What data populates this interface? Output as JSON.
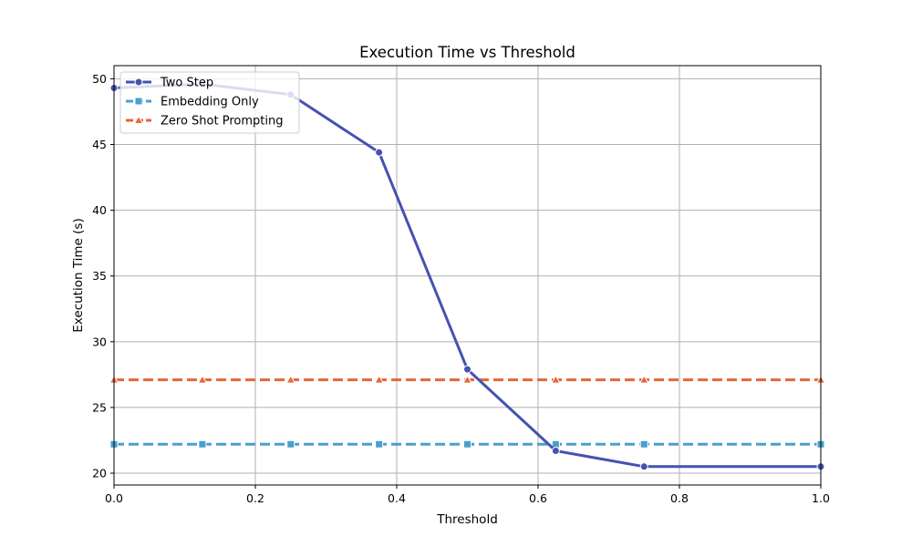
{
  "chart_data": {
    "type": "line",
    "title": "Execution Time vs Threshold",
    "xlabel": "Threshold",
    "ylabel": "Execution Time (s)",
    "xlim": [
      0.0,
      1.0
    ],
    "ylim": [
      19.1,
      51.0
    ],
    "x_ticks": [
      0.0,
      0.2,
      0.4,
      0.6,
      0.8,
      1.0
    ],
    "x_tick_labels": [
      "0.0",
      "0.2",
      "0.4",
      "0.6",
      "0.8",
      "1.0"
    ],
    "y_ticks": [
      20,
      25,
      30,
      35,
      40,
      45,
      50
    ],
    "y_tick_labels": [
      "20",
      "25",
      "30",
      "35",
      "40",
      "45",
      "50"
    ],
    "grid": true,
    "legend_position": "top-left",
    "x": [
      0.0,
      0.125,
      0.25,
      0.375,
      0.5,
      0.625,
      0.75,
      1.0
    ],
    "series": [
      {
        "name": "Two Step",
        "values": [
          49.3,
          49.6,
          48.8,
          44.4,
          27.9,
          21.7,
          20.5,
          20.5
        ],
        "color": "#4652b0",
        "linestyle": "solid",
        "marker": "circle"
      },
      {
        "name": "Embedding Only",
        "values": [
          22.2,
          22.2,
          22.2,
          22.2,
          22.2,
          22.2,
          22.2,
          22.2
        ],
        "color": "#4a9fce",
        "linestyle": "dashed",
        "marker": "square"
      },
      {
        "name": "Zero Shot Prompting",
        "values": [
          27.1,
          27.1,
          27.1,
          27.1,
          27.1,
          27.1,
          27.1,
          27.1
        ],
        "color": "#e4663a",
        "linestyle": "dashed",
        "marker": "triangle"
      }
    ]
  }
}
